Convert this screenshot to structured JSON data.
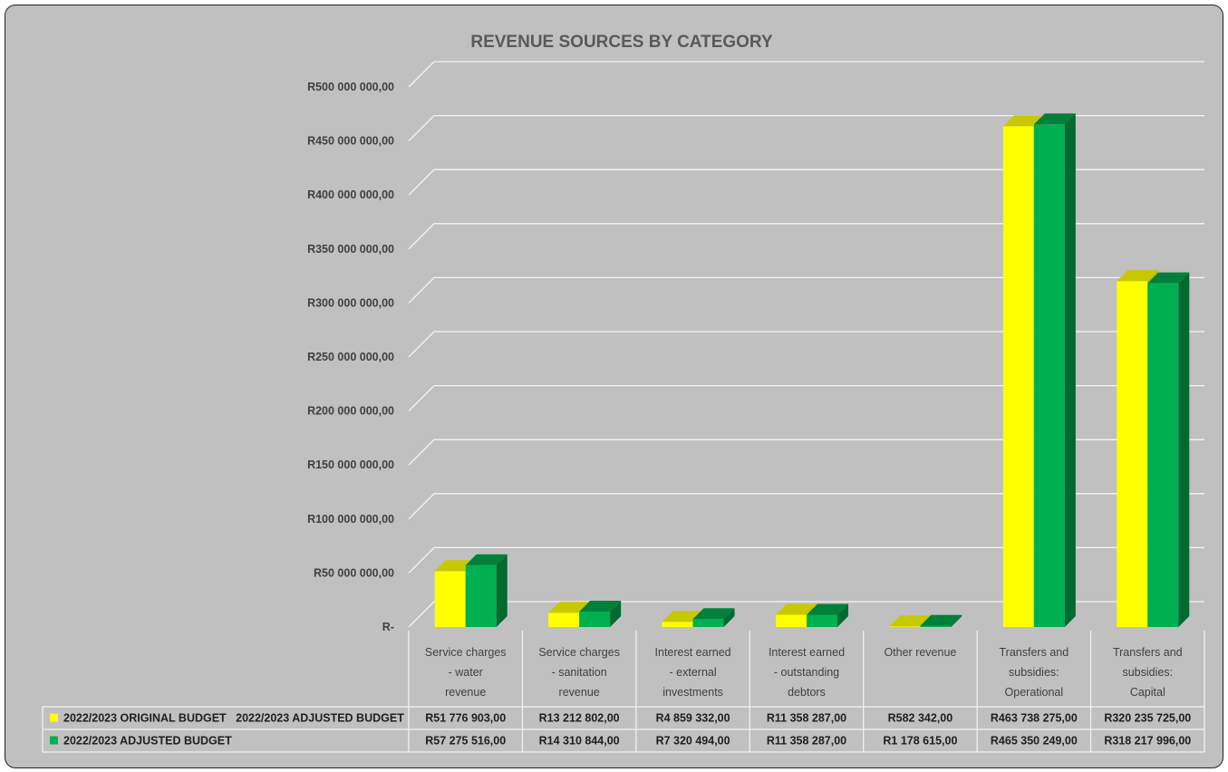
{
  "chart_data": {
    "type": "bar",
    "title": "REVENUE SOURCES BY CATEGORY",
    "categories": [
      [
        "Service charges",
        "- water",
        "revenue"
      ],
      [
        "Service charges",
        "- sanitation",
        "revenue"
      ],
      [
        "Interest earned",
        "- external",
        "investments"
      ],
      [
        "Interest earned",
        "- outstanding",
        "debtors"
      ],
      [
        "Other revenue"
      ],
      [
        "Transfers and",
        "subsidies:",
        "Operational"
      ],
      [
        "Transfers and",
        "subsidies:",
        "Capital"
      ]
    ],
    "series": [
      {
        "name": "2022/2023 ORIGINAL BUDGET   2022/2023 ADJUSTED BUDGET",
        "color": "#ffff00",
        "topColor": "#c8c800",
        "values": [
          51776903,
          13212802,
          4859332,
          11358287,
          582342,
          463738275,
          320235725
        ],
        "labels": [
          "R51 776 903,00",
          "R13 212 802,00",
          "R4 859 332,00",
          "R11 358 287,00",
          "R582 342,00",
          "R463 738 275,00",
          "R320 235 725,00"
        ]
      },
      {
        "name": "2022/2023 ADJUSTED BUDGET",
        "color": "#00b050",
        "topColor": "#00803a",
        "values": [
          57275516,
          14310844,
          7320494,
          11358287,
          1178615,
          465350249,
          318217996
        ],
        "labels": [
          "R57 275 516,00",
          "R14 310 844,00",
          "R7 320 494,00",
          "R11 358 287,00",
          "R1 178 615,00",
          "R465 350 249,00",
          "R318 217 996,00"
        ]
      }
    ],
    "ylim": [
      0,
      500000000
    ],
    "yticks": [
      {
        "value": 0,
        "label": "R-"
      },
      {
        "value": 50000000,
        "label": "R50 000 000,00"
      },
      {
        "value": 100000000,
        "label": "R100 000 000,00"
      },
      {
        "value": 150000000,
        "label": "R150 000 000,00"
      },
      {
        "value": 200000000,
        "label": "R200 000 000,00"
      },
      {
        "value": 250000000,
        "label": "R250 000 000,00"
      },
      {
        "value": 300000000,
        "label": "R300 000 000,00"
      },
      {
        "value": 350000000,
        "label": "R350 000 000,00"
      },
      {
        "value": 400000000,
        "label": "R400 000 000,00"
      },
      {
        "value": 450000000,
        "label": "R450 000 000,00"
      },
      {
        "value": 500000000,
        "label": "R500 000 000,00"
      }
    ],
    "grid": true,
    "legend": "data-table",
    "colors": {
      "background": "#c0c0c0",
      "grid": "#f4f4f4"
    }
  }
}
